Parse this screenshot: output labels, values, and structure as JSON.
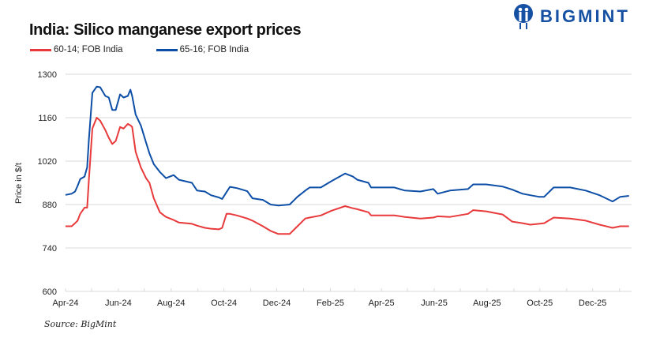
{
  "brand": {
    "name": "BIGMINT",
    "color": "#1550a3"
  },
  "chart_data": {
    "type": "line",
    "title": "India: Silico manganese export prices",
    "ylabel": "Price in $/t",
    "xlabel": "",
    "ylim": [
      600,
      1300
    ],
    "yticks": [
      600,
      740,
      880,
      1020,
      1160,
      1300
    ],
    "xlim": [
      "2024-04-01",
      "2026-01-15"
    ],
    "xticks": [
      {
        "date": "2024-04-01",
        "label": "Apr-24"
      },
      {
        "date": "2024-06-01",
        "label": "Jun-24"
      },
      {
        "date": "2024-08-01",
        "label": "Aug-24"
      },
      {
        "date": "2024-10-01",
        "label": "Oct-24"
      },
      {
        "date": "2024-12-01",
        "label": "Dec-24"
      },
      {
        "date": "2025-02-01",
        "label": "Feb-25"
      },
      {
        "date": "2025-04-01",
        "label": "Apr-25"
      },
      {
        "date": "2025-06-01",
        "label": "Jun-25"
      },
      {
        "date": "2025-08-01",
        "label": "Aug-25"
      },
      {
        "date": "2025-10-01",
        "label": "Oct-25"
      },
      {
        "date": "2025-12-01",
        "label": "Dec-25"
      }
    ],
    "grid": "horizontal",
    "legend": "top-left",
    "x": [
      "2024-04-01",
      "2024-04-08",
      "2024-04-12",
      "2024-04-15",
      "2024-04-18",
      "2024-04-23",
      "2024-04-26",
      "2024-04-28",
      "2024-05-02",
      "2024-05-07",
      "2024-05-11",
      "2024-05-17",
      "2024-05-21",
      "2024-05-25",
      "2024-05-29",
      "2024-06-03",
      "2024-06-07",
      "2024-06-12",
      "2024-06-15",
      "2024-06-17",
      "2024-06-21",
      "2024-06-27",
      "2024-07-03",
      "2024-07-07",
      "2024-07-12",
      "2024-07-19",
      "2024-07-26",
      "2024-08-04",
      "2024-08-10",
      "2024-08-25",
      "2024-08-31",
      "2024-09-09",
      "2024-09-16",
      "2024-09-25",
      "2024-09-29",
      "2024-10-04",
      "2024-10-08",
      "2024-10-16",
      "2024-10-28",
      "2024-11-03",
      "2024-11-15",
      "2024-11-24",
      "2024-12-03",
      "2024-12-16",
      "2024-12-25",
      "2025-01-03",
      "2025-01-08",
      "2025-01-21",
      "2025-02-02",
      "2025-02-18",
      "2025-02-27",
      "2025-03-04",
      "2025-03-17",
      "2025-03-20",
      "2025-04-16",
      "2025-04-28",
      "2025-05-16",
      "2025-05-31",
      "2025-06-05",
      "2025-06-19",
      "2025-07-10",
      "2025-07-16",
      "2025-07-31",
      "2025-08-19",
      "2025-08-30",
      "2025-09-11",
      "2025-09-20",
      "2025-09-30",
      "2025-10-06",
      "2025-10-17",
      "2025-11-05",
      "2025-11-23",
      "2025-12-09",
      "2025-12-24",
      "2026-01-02",
      "2026-01-12"
    ],
    "series": [
      {
        "name": "60-14; FOB India",
        "color": "#e8393b",
        "values": [
          810,
          810,
          820,
          828,
          850,
          870,
          870,
          960,
          1125,
          1160,
          1150,
          1120,
          1095,
          1075,
          1085,
          1130,
          1125,
          1140,
          1135,
          1130,
          1050,
          1000,
          965,
          950,
          900,
          855,
          840,
          830,
          822,
          818,
          812,
          805,
          802,
          800,
          805,
          850,
          850,
          845,
          835,
          828,
          810,
          795,
          785,
          785,
          810,
          835,
          838,
          845,
          860,
          875,
          868,
          865,
          855,
          845,
          845,
          840,
          835,
          838,
          842,
          840,
          850,
          862,
          858,
          848,
          825,
          820,
          815,
          818,
          820,
          838,
          835,
          828,
          815,
          805,
          810,
          810
        ]
      },
      {
        "name": "65-16; FOB India",
        "color": "#0d4ea6",
        "values": [
          911,
          915,
          922,
          940,
          962,
          970,
          1000,
          1090,
          1240,
          1260,
          1258,
          1230,
          1225,
          1185,
          1185,
          1235,
          1225,
          1230,
          1250,
          1230,
          1170,
          1135,
          1080,
          1045,
          1010,
          985,
          965,
          975,
          960,
          950,
          925,
          922,
          910,
          903,
          898,
          920,
          937,
          933,
          923,
          900,
          895,
          880,
          877,
          880,
          905,
          925,
          935,
          935,
          955,
          980,
          970,
          960,
          950,
          935,
          935,
          925,
          922,
          930,
          915,
          925,
          930,
          945,
          945,
          938,
          928,
          915,
          910,
          905,
          905,
          935,
          935,
          925,
          910,
          890,
          905,
          908
        ]
      }
    ]
  },
  "source": "Source: BigMint"
}
